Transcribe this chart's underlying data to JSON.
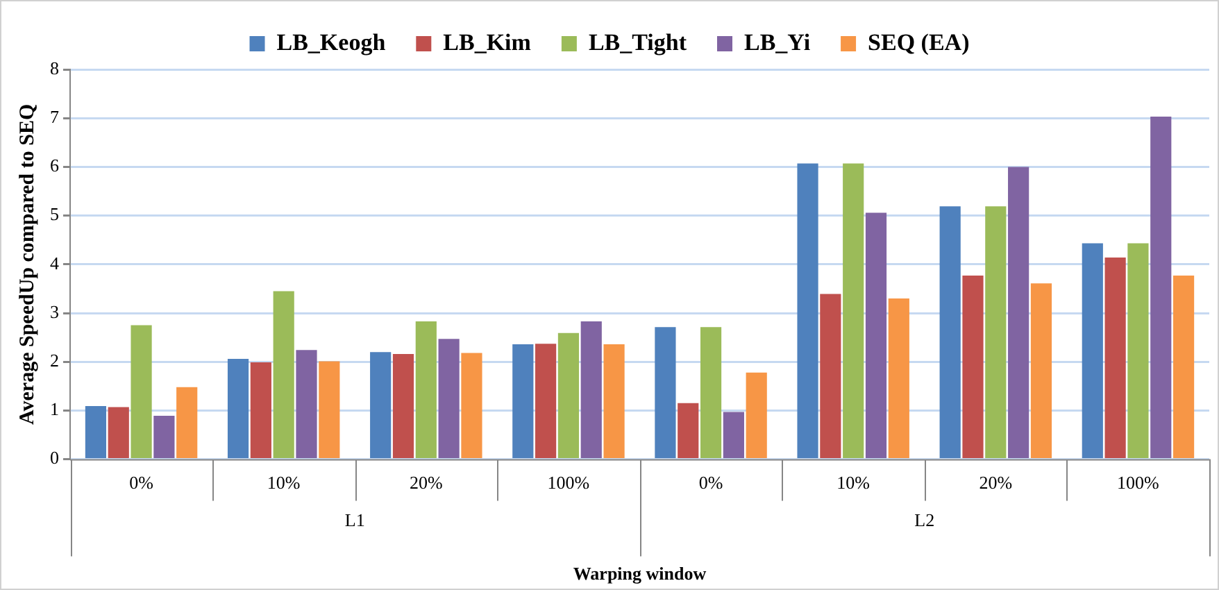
{
  "chart_data": {
    "type": "bar",
    "categories": [
      "0%",
      "10%",
      "20%",
      "100%",
      "0%",
      "10%",
      "20%",
      "100%"
    ],
    "series": [
      {
        "name": "LB_Keogh",
        "color": "#4f81bd",
        "values": [
          1.09,
          2.06,
          2.2,
          2.36,
          2.71,
          6.07,
          5.19,
          4.43
        ]
      },
      {
        "name": "LB_Kim",
        "color": "#c0504d",
        "values": [
          1.07,
          1.99,
          2.16,
          2.37,
          1.15,
          3.39,
          3.77,
          4.14
        ]
      },
      {
        "name": "LB_Tight",
        "color": "#9bbb59",
        "values": [
          2.75,
          3.45,
          2.83,
          2.59,
          2.71,
          6.07,
          5.19,
          4.43
        ]
      },
      {
        "name": "LB_Yi",
        "color": "#8064a2",
        "values": [
          0.89,
          2.24,
          2.47,
          2.83,
          0.97,
          5.06,
          6.0,
          7.03
        ]
      },
      {
        "name": "SEQ (EA)",
        "color": "#f79646",
        "values": [
          1.48,
          2.01,
          2.18,
          2.36,
          1.78,
          3.3,
          3.61,
          3.77
        ]
      }
    ],
    "ylabel": "Average SpeedUp compared to SEQ",
    "xlabel": "Warping window",
    "annotations": [
      "L1",
      "L2"
    ],
    "ylim": [
      0,
      8
    ],
    "yticks": [
      0,
      1,
      2,
      3,
      4,
      5,
      6,
      7,
      8
    ],
    "grid": "y",
    "legend": "top"
  }
}
